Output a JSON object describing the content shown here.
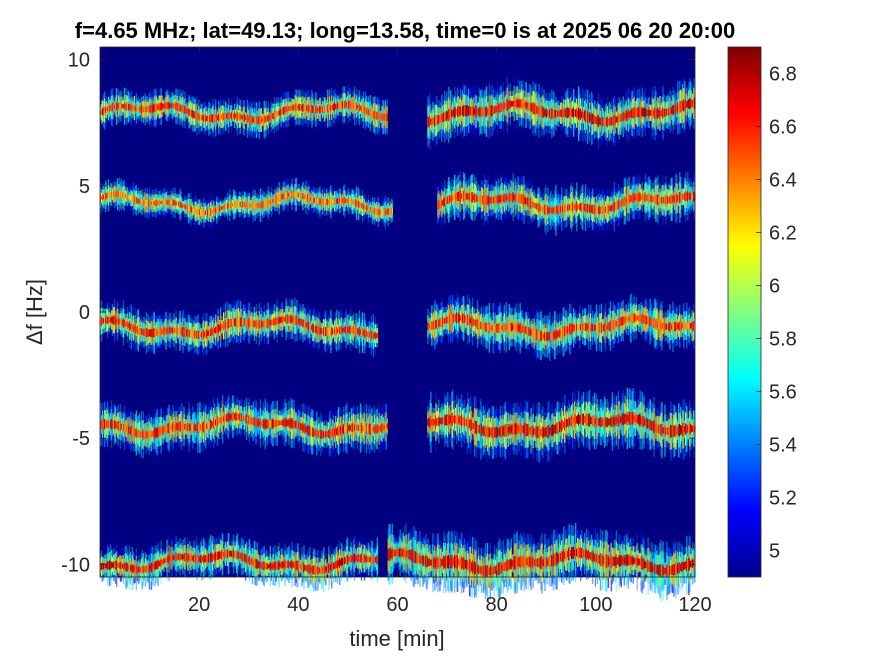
{
  "chart_data": {
    "type": "heatmap",
    "title": "f=4.65 MHz;  lat=49.13; long=13.58, time=0 is at 2025 06 20 20:00",
    "xlabel": "time [min]",
    "ylabel": "Δf [Hz]",
    "xlim": [
      0,
      120
    ],
    "ylim": [
      -10.5,
      10.5
    ],
    "x_ticks": [
      20,
      40,
      60,
      80,
      100,
      120
    ],
    "x_tick_labels": [
      "20",
      "40",
      "60",
      "80",
      "100",
      "120"
    ],
    "y_ticks": [
      10,
      5,
      0,
      -5,
      -10
    ],
    "y_tick_labels": [
      "10",
      "5",
      "0",
      "-5",
      "-10"
    ],
    "colorbar": {
      "range": [
        4.9,
        6.9
      ],
      "ticks": [
        6.8,
        6.6,
        6.4,
        6.2,
        6,
        5.8,
        5.6,
        5.4,
        5.2,
        5
      ],
      "tick_labels": [
        "6.8",
        "6.6",
        "6.4",
        "6.2",
        "6",
        "5.8",
        "5.6",
        "5.4",
        "5.2",
        "5"
      ],
      "colormap": "jet"
    },
    "background_value": 4.9,
    "bands": [
      {
        "center_df": 7.9,
        "segments": [
          [
            0,
            58,
            0.35,
            6.8
          ],
          [
            66,
            120,
            0.5,
            6.9
          ]
        ]
      },
      {
        "center_df": 4.3,
        "segments": [
          [
            0,
            59,
            0.3,
            6.7
          ],
          [
            68,
            120,
            0.45,
            6.8
          ]
        ]
      },
      {
        "center_df": -0.6,
        "segments": [
          [
            0,
            56,
            0.4,
            6.8
          ],
          [
            66,
            120,
            0.45,
            6.8
          ]
        ]
      },
      {
        "center_df": -4.5,
        "segments": [
          [
            0,
            58,
            0.45,
            6.8
          ],
          [
            66,
            120,
            0.55,
            6.9
          ]
        ]
      },
      {
        "center_df": -9.9,
        "segments": [
          [
            0,
            56,
            0.4,
            6.9
          ],
          [
            58,
            120,
            0.55,
            6.9
          ]
        ]
      }
    ]
  },
  "colors": {
    "axes_background": "#00008f",
    "frame": "#262626"
  }
}
